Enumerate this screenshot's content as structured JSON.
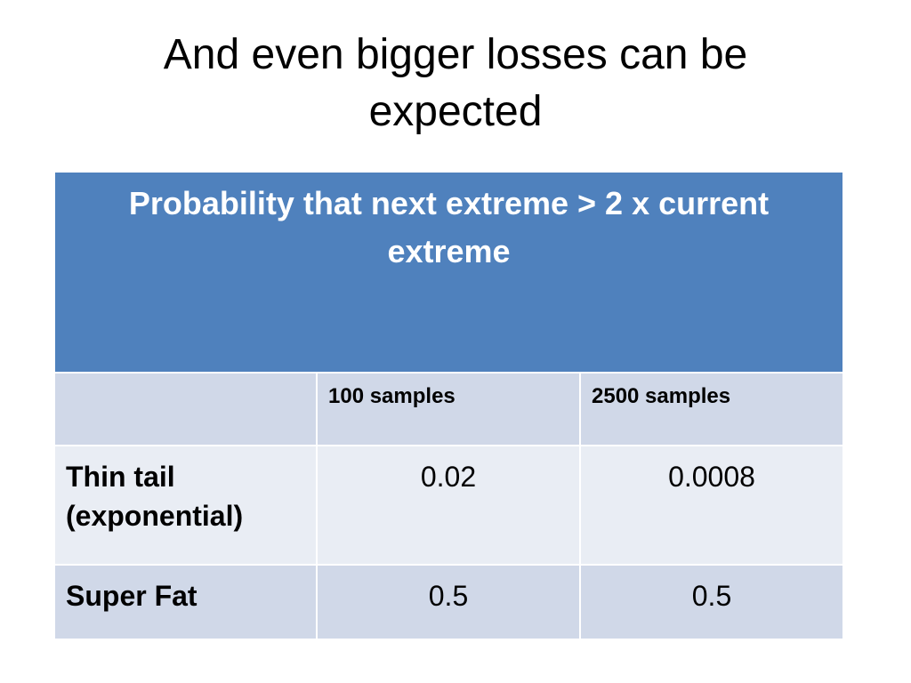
{
  "slide": {
    "title": "And even bigger losses can be expected"
  },
  "table": {
    "header": "Probability that next extreme > 2 x current extreme",
    "column_headers": [
      "",
      "100 samples",
      "2500 samples"
    ],
    "rows": [
      {
        "label": "Thin tail (exponential)",
        "values": [
          "0.02",
          "0.0008"
        ]
      },
      {
        "label": "Super Fat",
        "values": [
          "0.5",
          "0.5"
        ]
      }
    ]
  },
  "colors": {
    "header_fill": "#4f81bd",
    "band_dark": "#d0d8e8",
    "band_light": "#e9edf4"
  }
}
